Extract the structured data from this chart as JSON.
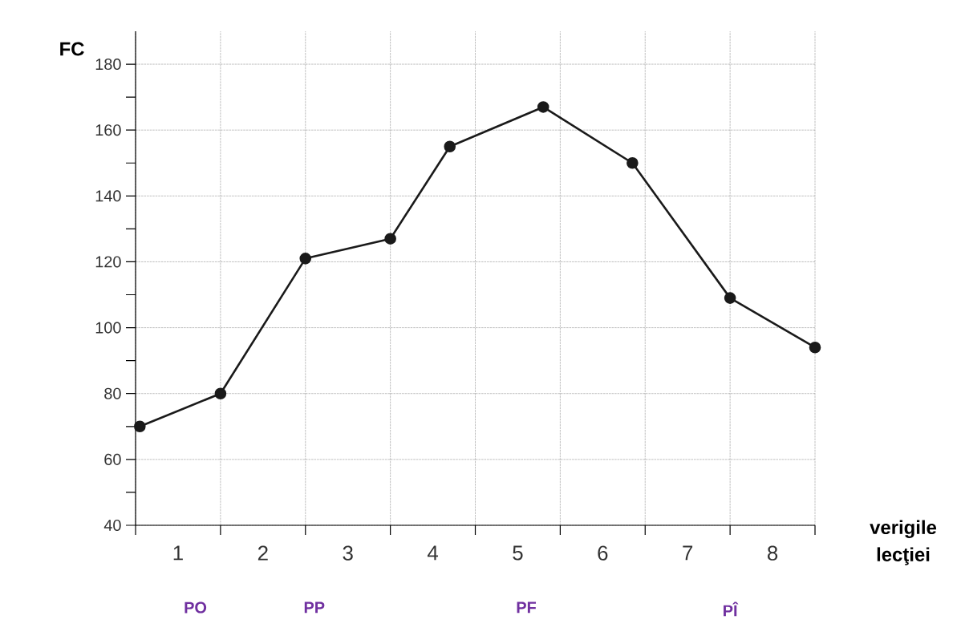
{
  "chart_data": {
    "type": "line",
    "ylabel": "FC",
    "xlabel": "verigile lecţiei",
    "x": [
      0.05,
      1,
      2,
      3,
      3.7,
      4.8,
      5.85,
      7,
      8
    ],
    "values": [
      70,
      80,
      121,
      127,
      155,
      167,
      150,
      109,
      94
    ],
    "color": "#1a1a1a",
    "marker": "circle",
    "line_style": "solid",
    "grid": true,
    "xlim": [
      0,
      8
    ],
    "ylim": [
      40,
      190
    ],
    "xticks": [
      {
        "value": 0,
        "label": null
      },
      {
        "value": 1,
        "label": null
      },
      {
        "value": 2,
        "label": null
      },
      {
        "value": 3,
        "label": null
      },
      {
        "value": 4,
        "label": null
      },
      {
        "value": 5,
        "label": null
      },
      {
        "value": 6,
        "label": null
      },
      {
        "value": 7,
        "label": null
      },
      {
        "value": 8,
        "label": null
      },
      {
        "value": 0.5,
        "label": "1"
      },
      {
        "value": 1.5,
        "label": "2"
      },
      {
        "value": 2.5,
        "label": "3"
      },
      {
        "value": 3.5,
        "label": "4"
      },
      {
        "value": 4.5,
        "label": "5"
      },
      {
        "value": 5.5,
        "label": "6"
      },
      {
        "value": 6.5,
        "label": "7"
      },
      {
        "value": 7.5,
        "label": "8"
      }
    ],
    "yticks": [
      40,
      60,
      80,
      100,
      120,
      140,
      160,
      180
    ],
    "annotations": [
      "PO",
      "PP",
      "PF",
      "PÎ"
    ]
  }
}
